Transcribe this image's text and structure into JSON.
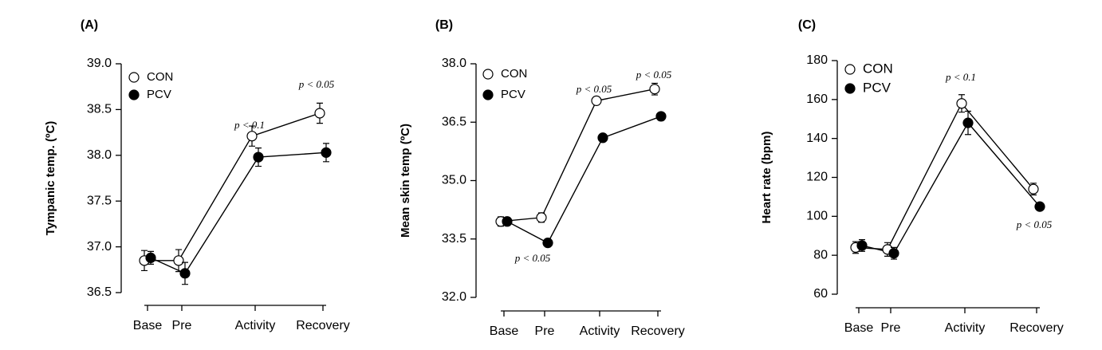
{
  "chart_data": [
    {
      "type": "line",
      "title": "(A)",
      "ylabel": "Tympanic temp. (ºC)",
      "categories": [
        "Base",
        "Pre",
        "Activity",
        "Recovery"
      ],
      "series": [
        {
          "name": "CON",
          "color": "#ffffff",
          "values": [
            36.85,
            36.85,
            38.21,
            38.46
          ],
          "errors": [
            0.11,
            0.12,
            0.11,
            0.11
          ]
        },
        {
          "name": "PCV",
          "color": "#000000",
          "values": [
            36.88,
            36.71,
            37.98,
            38.03
          ],
          "errors": [
            0.07,
            0.12,
            0.1,
            0.1
          ]
        }
      ],
      "ylim": [
        36.5,
        39.0
      ],
      "yticks": [
        36.5,
        {
          "value": 37,
          "label": "37.0"
        },
        37.5,
        {
          "value": 38,
          "label": "38.0"
        },
        38.5,
        {
          "value": 39,
          "label": "39.0"
        }
      ],
      "annotations": [
        "p < 0.1",
        "p < 0.05"
      ]
    },
    {
      "type": "line",
      "title": "(B)",
      "ylabel": "Mean skin temp (ºC)",
      "categories": [
        "Base",
        "Pre",
        "Activity",
        "Recovery"
      ],
      "series": [
        {
          "name": "CON",
          "color": "#ffffff",
          "values": [
            33.95,
            34.05,
            37.05,
            37.35
          ],
          "errors": [
            0.12,
            0.12,
            0.1,
            0.15
          ]
        },
        {
          "name": "PCV",
          "color": "#000000",
          "values": [
            33.95,
            33.4,
            36.1,
            36.65
          ],
          "errors": [
            0.1,
            0.1,
            0.07,
            0.1
          ]
        }
      ],
      "ylim": [
        32.0,
        38.0
      ],
      "yticks": [
        {
          "value": 32,
          "label": "32.0"
        },
        33.5,
        {
          "value": 35,
          "label": "35.0"
        },
        36.5,
        {
          "value": 38,
          "label": "38.0"
        }
      ],
      "annotations": [
        "p < 0.05",
        "p < 0.05",
        "p < 0.05"
      ]
    },
    {
      "type": "line",
      "title": "(C)",
      "ylabel": "Heart rate (bpm)",
      "categories": [
        "Base",
        "Pre",
        "Activity",
        "Recovery"
      ],
      "series": [
        {
          "name": "CON",
          "color": "#ffffff",
          "values": [
            84,
            83,
            158,
            114
          ],
          "errors": [
            3,
            3.5,
            4.5,
            3
          ]
        },
        {
          "name": "PCV",
          "color": "#000000",
          "values": [
            85,
            81,
            148,
            105
          ],
          "errors": [
            3,
            3,
            6,
            1.5
          ]
        }
      ],
      "ylim": [
        60,
        180
      ],
      "yticks": [
        60,
        80,
        100,
        120,
        140,
        160,
        180
      ],
      "annotations": [
        "p < 0.1",
        "p < 0.05"
      ]
    }
  ]
}
